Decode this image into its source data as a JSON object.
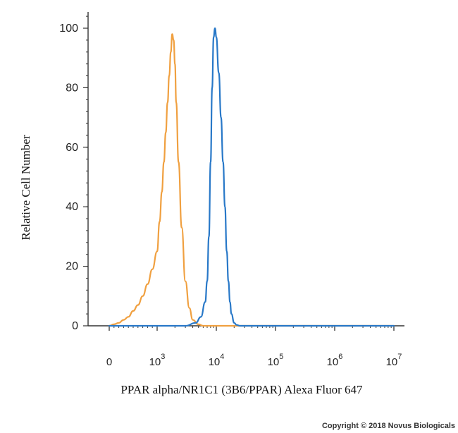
{
  "chart_data": {
    "type": "line",
    "title": "",
    "xlabel": "PPAR alpha/NR1C1 (3B6/PPAR) Alexa Fluor 647",
    "ylabel": "Relative Cell Number",
    "x_scale": "biexponential",
    "ylim": [
      0,
      100
    ],
    "y_ticks": [
      "0",
      "20",
      "40",
      "60",
      "80",
      "100"
    ],
    "x_ticks": [
      {
        "base": "0",
        "exp": ""
      },
      {
        "base": "10",
        "exp": "3"
      },
      {
        "base": "10",
        "exp": "4"
      },
      {
        "base": "10",
        "exp": "5"
      },
      {
        "base": "10",
        "exp": "6"
      },
      {
        "base": "10",
        "exp": "7"
      }
    ],
    "grid": false,
    "series": [
      {
        "color": "#f0a040",
        "x": [
          0,
          100,
          200,
          300,
          400,
          500,
          600,
          700,
          800,
          900,
          1000,
          1100,
          1200,
          1300,
          1400,
          1500,
          1600,
          1700,
          1800,
          1900,
          2000,
          2100,
          2300,
          2600,
          3000,
          3500,
          4000,
          5000,
          6000,
          10000,
          100000,
          10000000
        ],
        "y": [
          0,
          0.5,
          1,
          2,
          3,
          5,
          7,
          10,
          14,
          19,
          25,
          35,
          45,
          55,
          65,
          75,
          84,
          92,
          98,
          96,
          88,
          75,
          55,
          33,
          15,
          6,
          2,
          0.5,
          0,
          0,
          0,
          0
        ]
      },
      {
        "color": "#2878c8",
        "x": [
          0,
          1000,
          3000,
          4500,
          5500,
          6500,
          7000,
          7500,
          8000,
          8500,
          9000,
          9500,
          10000,
          11000,
          12000,
          13000,
          14000,
          15000,
          16000,
          17000,
          18000,
          20000,
          22000,
          25000,
          100000,
          1000000,
          10000000
        ],
        "y": [
          0,
          0,
          0,
          1,
          3,
          8,
          15,
          30,
          55,
          80,
          97,
          100,
          97,
          85,
          70,
          55,
          40,
          25,
          15,
          8,
          4,
          1,
          0.3,
          0,
          0,
          0,
          0
        ]
      }
    ]
  },
  "copyright": "Copyright © 2018 Novus Biologicals"
}
